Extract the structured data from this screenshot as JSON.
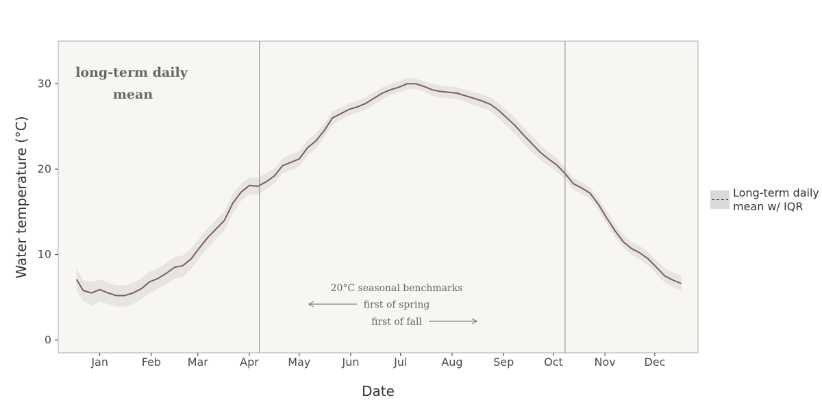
{
  "chart_data": {
    "type": "line",
    "title": "long-term daily mean",
    "xlabel": "Date",
    "ylabel": "Water temperature (°C)",
    "x_unit": "day of year",
    "xlim": [
      -10,
      375
    ],
    "ylim": [
      -1.5,
      35
    ],
    "y_ticks": [
      0,
      10,
      20,
      30
    ],
    "month_ticks": [
      {
        "label": "Jan",
        "day": 15
      },
      {
        "label": "Feb",
        "day": 46
      },
      {
        "label": "Mar",
        "day": 74
      },
      {
        "label": "Apr",
        "day": 105
      },
      {
        "label": "May",
        "day": 135
      },
      {
        "label": "Jun",
        "day": 166
      },
      {
        "label": "Jul",
        "day": 196
      },
      {
        "label": "Aug",
        "day": 227
      },
      {
        "label": "Sep",
        "day": 258
      },
      {
        "label": "Oct",
        "day": 288
      },
      {
        "label": "Nov",
        "day": 319
      },
      {
        "label": "Dec",
        "day": 349
      }
    ],
    "series": [
      {
        "name": "Long-term daily mean w/ IQR",
        "color": "#7a5c62",
        "band_color": "#e8e5e1",
        "x": [
          1,
          5,
          10,
          15,
          20,
          25,
          30,
          35,
          40,
          45,
          50,
          55,
          60,
          65,
          70,
          75,
          80,
          85,
          90,
          95,
          100,
          105,
          110,
          115,
          120,
          125,
          130,
          135,
          140,
          145,
          150,
          155,
          160,
          165,
          170,
          175,
          180,
          185,
          190,
          195,
          200,
          205,
          210,
          215,
          220,
          225,
          230,
          235,
          240,
          245,
          250,
          255,
          260,
          265,
          270,
          275,
          280,
          285,
          290,
          295,
          300,
          305,
          310,
          315,
          320,
          325,
          330,
          335,
          340,
          345,
          350,
          355,
          360,
          365
        ],
        "mean": [
          7.1,
          5.8,
          5.5,
          5.9,
          5.5,
          5.2,
          5.2,
          5.5,
          6.0,
          6.8,
          7.2,
          7.8,
          8.5,
          8.7,
          9.5,
          10.8,
          12.0,
          13.0,
          14.0,
          16.0,
          17.3,
          18.1,
          18.0,
          18.5,
          19.2,
          20.4,
          20.8,
          21.2,
          22.5,
          23.3,
          24.5,
          26.0,
          26.5,
          27.0,
          27.3,
          27.7,
          28.3,
          28.9,
          29.3,
          29.6,
          30.0,
          30.0,
          29.7,
          29.3,
          29.1,
          29.0,
          28.9,
          28.6,
          28.3,
          28.0,
          27.6,
          26.9,
          26.0,
          25.1,
          24.0,
          23.0,
          22.0,
          21.2,
          20.5,
          19.5,
          18.3,
          17.8,
          17.2,
          15.9,
          14.3,
          12.8,
          11.5,
          10.7,
          10.2,
          9.5,
          8.5,
          7.5,
          7.0,
          6.6
        ],
        "q1": [
          5.8,
          4.6,
          4.0,
          4.5,
          4.2,
          3.9,
          3.9,
          4.2,
          4.8,
          5.5,
          6.0,
          6.5,
          7.2,
          7.4,
          8.3,
          9.6,
          10.8,
          11.8,
          12.8,
          14.8,
          16.3,
          17.1,
          17.0,
          17.6,
          18.3,
          19.5,
          19.9,
          20.3,
          21.6,
          22.4,
          23.7,
          25.2,
          25.8,
          26.3,
          26.6,
          27.0,
          27.6,
          28.2,
          28.7,
          29.0,
          29.3,
          29.4,
          29.1,
          28.6,
          28.4,
          28.3,
          28.2,
          27.9,
          27.5,
          27.2,
          26.8,
          26.0,
          25.0,
          24.1,
          23.0,
          22.0,
          21.1,
          20.4,
          19.7,
          18.8,
          17.6,
          17.1,
          16.5,
          15.2,
          13.6,
          12.1,
          10.8,
          10.0,
          9.4,
          8.7,
          7.7,
          6.7,
          6.2,
          5.7
        ],
        "q3": [
          8.4,
          7.0,
          6.8,
          7.1,
          6.7,
          6.4,
          6.4,
          6.7,
          7.2,
          8.0,
          8.4,
          9.0,
          9.7,
          9.9,
          10.7,
          11.9,
          13.1,
          14.1,
          15.1,
          17.1,
          18.3,
          19.0,
          19.0,
          19.5,
          20.1,
          21.3,
          21.7,
          22.1,
          23.4,
          24.2,
          25.3,
          26.8,
          27.2,
          27.7,
          28.0,
          28.4,
          29.0,
          29.6,
          30.0,
          30.3,
          30.7,
          30.6,
          30.3,
          30.0,
          29.8,
          29.7,
          29.6,
          29.3,
          29.0,
          28.8,
          28.4,
          27.7,
          26.9,
          26.0,
          24.9,
          23.9,
          22.9,
          22.0,
          21.3,
          20.2,
          19.0,
          18.5,
          17.9,
          16.6,
          15.1,
          13.6,
          12.3,
          11.5,
          11.0,
          10.3,
          9.3,
          8.4,
          7.9,
          7.5
        ]
      }
    ],
    "reference_lines": [
      {
        "day": 111,
        "meaning": "first of spring"
      },
      {
        "day": 295,
        "meaning": "first of fall"
      }
    ],
    "annotations": {
      "heading": "20°C seasonal benchmarks",
      "spring": "first of spring",
      "fall": "first of fall"
    },
    "legend": {
      "label_line1": "Long-term daily",
      "label_line2": "mean w/ IQR",
      "placement": "right"
    },
    "grid": false
  }
}
